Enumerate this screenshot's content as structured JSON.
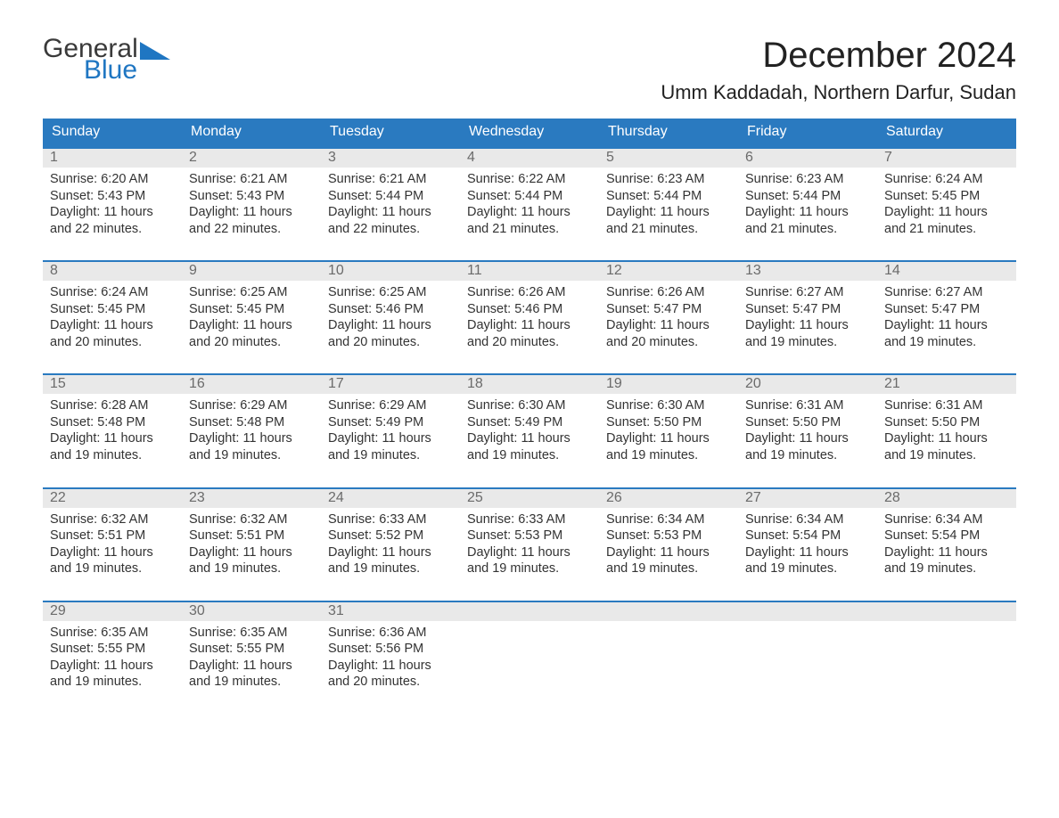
{
  "brand": {
    "word1": "General",
    "word2": "Blue",
    "accent_color": "#1f76c2",
    "text_color": "#3a3a3a"
  },
  "title": "December 2024",
  "location": "Umm Kaddadah, Northern Darfur, Sudan",
  "colors": {
    "header_bg": "#2a7ac0",
    "header_fg": "#ffffff",
    "week_rule": "#2a7ac0",
    "daynum_bg": "#e9e9e9",
    "daynum_fg": "#6b6b6b",
    "body_fg": "#333333",
    "page_bg": "#ffffff"
  },
  "typography": {
    "title_fontsize": 40,
    "location_fontsize": 22,
    "dow_fontsize": 16,
    "daynum_fontsize": 16,
    "body_fontsize": 14.5
  },
  "days_of_week": [
    "Sunday",
    "Monday",
    "Tuesday",
    "Wednesday",
    "Thursday",
    "Friday",
    "Saturday"
  ],
  "weeks": [
    [
      {
        "n": "1",
        "sunrise": "6:20 AM",
        "sunset": "5:43 PM",
        "day_h": 11,
        "day_m": 22
      },
      {
        "n": "2",
        "sunrise": "6:21 AM",
        "sunset": "5:43 PM",
        "day_h": 11,
        "day_m": 22
      },
      {
        "n": "3",
        "sunrise": "6:21 AM",
        "sunset": "5:44 PM",
        "day_h": 11,
        "day_m": 22
      },
      {
        "n": "4",
        "sunrise": "6:22 AM",
        "sunset": "5:44 PM",
        "day_h": 11,
        "day_m": 21
      },
      {
        "n": "5",
        "sunrise": "6:23 AM",
        "sunset": "5:44 PM",
        "day_h": 11,
        "day_m": 21
      },
      {
        "n": "6",
        "sunrise": "6:23 AM",
        "sunset": "5:44 PM",
        "day_h": 11,
        "day_m": 21
      },
      {
        "n": "7",
        "sunrise": "6:24 AM",
        "sunset": "5:45 PM",
        "day_h": 11,
        "day_m": 21
      }
    ],
    [
      {
        "n": "8",
        "sunrise": "6:24 AM",
        "sunset": "5:45 PM",
        "day_h": 11,
        "day_m": 20
      },
      {
        "n": "9",
        "sunrise": "6:25 AM",
        "sunset": "5:45 PM",
        "day_h": 11,
        "day_m": 20
      },
      {
        "n": "10",
        "sunrise": "6:25 AM",
        "sunset": "5:46 PM",
        "day_h": 11,
        "day_m": 20
      },
      {
        "n": "11",
        "sunrise": "6:26 AM",
        "sunset": "5:46 PM",
        "day_h": 11,
        "day_m": 20
      },
      {
        "n": "12",
        "sunrise": "6:26 AM",
        "sunset": "5:47 PM",
        "day_h": 11,
        "day_m": 20
      },
      {
        "n": "13",
        "sunrise": "6:27 AM",
        "sunset": "5:47 PM",
        "day_h": 11,
        "day_m": 19
      },
      {
        "n": "14",
        "sunrise": "6:27 AM",
        "sunset": "5:47 PM",
        "day_h": 11,
        "day_m": 19
      }
    ],
    [
      {
        "n": "15",
        "sunrise": "6:28 AM",
        "sunset": "5:48 PM",
        "day_h": 11,
        "day_m": 19
      },
      {
        "n": "16",
        "sunrise": "6:29 AM",
        "sunset": "5:48 PM",
        "day_h": 11,
        "day_m": 19
      },
      {
        "n": "17",
        "sunrise": "6:29 AM",
        "sunset": "5:49 PM",
        "day_h": 11,
        "day_m": 19
      },
      {
        "n": "18",
        "sunrise": "6:30 AM",
        "sunset": "5:49 PM",
        "day_h": 11,
        "day_m": 19
      },
      {
        "n": "19",
        "sunrise": "6:30 AM",
        "sunset": "5:50 PM",
        "day_h": 11,
        "day_m": 19
      },
      {
        "n": "20",
        "sunrise": "6:31 AM",
        "sunset": "5:50 PM",
        "day_h": 11,
        "day_m": 19
      },
      {
        "n": "21",
        "sunrise": "6:31 AM",
        "sunset": "5:50 PM",
        "day_h": 11,
        "day_m": 19
      }
    ],
    [
      {
        "n": "22",
        "sunrise": "6:32 AM",
        "sunset": "5:51 PM",
        "day_h": 11,
        "day_m": 19
      },
      {
        "n": "23",
        "sunrise": "6:32 AM",
        "sunset": "5:51 PM",
        "day_h": 11,
        "day_m": 19
      },
      {
        "n": "24",
        "sunrise": "6:33 AM",
        "sunset": "5:52 PM",
        "day_h": 11,
        "day_m": 19
      },
      {
        "n": "25",
        "sunrise": "6:33 AM",
        "sunset": "5:53 PM",
        "day_h": 11,
        "day_m": 19
      },
      {
        "n": "26",
        "sunrise": "6:34 AM",
        "sunset": "5:53 PM",
        "day_h": 11,
        "day_m": 19
      },
      {
        "n": "27",
        "sunrise": "6:34 AM",
        "sunset": "5:54 PM",
        "day_h": 11,
        "day_m": 19
      },
      {
        "n": "28",
        "sunrise": "6:34 AM",
        "sunset": "5:54 PM",
        "day_h": 11,
        "day_m": 19
      }
    ],
    [
      {
        "n": "29",
        "sunrise": "6:35 AM",
        "sunset": "5:55 PM",
        "day_h": 11,
        "day_m": 19
      },
      {
        "n": "30",
        "sunrise": "6:35 AM",
        "sunset": "5:55 PM",
        "day_h": 11,
        "day_m": 19
      },
      {
        "n": "31",
        "sunrise": "6:36 AM",
        "sunset": "5:56 PM",
        "day_h": 11,
        "day_m": 20
      },
      null,
      null,
      null,
      null
    ]
  ],
  "labels": {
    "sunrise": "Sunrise:",
    "sunset": "Sunset:",
    "daylight": "Daylight:",
    "hours": "hours",
    "and": "and",
    "minutes": "minutes."
  }
}
